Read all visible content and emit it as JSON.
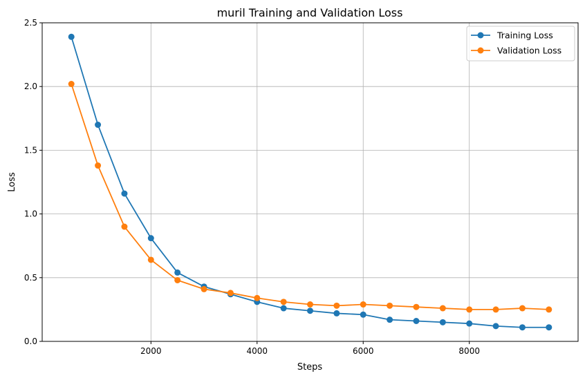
{
  "chart_data": {
    "type": "line",
    "title": "muril Training and Validation Loss",
    "xlabel": "Steps",
    "ylabel": "Loss",
    "xlim": [
      -50,
      10050
    ],
    "ylim": [
      0.0,
      2.5
    ],
    "xticks": [
      2000,
      4000,
      6000,
      8000
    ],
    "yticks": [
      0.0,
      0.5,
      1.0,
      1.5,
      2.0,
      2.5
    ],
    "grid": true,
    "legend_position": "top-right",
    "x": [
      500,
      1000,
      1500,
      2000,
      2500,
      3000,
      3500,
      4000,
      4500,
      5000,
      5500,
      6000,
      6500,
      7000,
      7500,
      8000,
      8500,
      9000,
      9500
    ],
    "series": [
      {
        "name": "Training Loss",
        "color": "#1f77b4",
        "values": [
          2.39,
          1.7,
          1.16,
          0.81,
          0.54,
          0.43,
          0.37,
          0.31,
          0.26,
          0.24,
          0.22,
          0.21,
          0.17,
          0.16,
          0.15,
          0.14,
          0.12,
          0.11,
          0.11
        ]
      },
      {
        "name": "Validation Loss",
        "color": "#ff7f0e",
        "values": [
          2.02,
          1.38,
          0.9,
          0.64,
          0.48,
          0.41,
          0.38,
          0.34,
          0.31,
          0.29,
          0.28,
          0.29,
          0.28,
          0.27,
          0.26,
          0.25,
          0.25,
          0.26,
          0.25
        ]
      }
    ]
  }
}
